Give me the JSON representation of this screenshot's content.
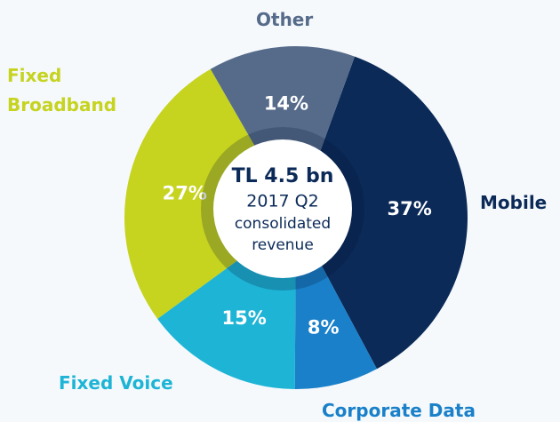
{
  "chart_data": {
    "type": "donut",
    "categories": [
      "Mobile",
      "Corporate Data",
      "Fixed Voice",
      "Fixed Broadband",
      "Other"
    ],
    "values": [
      37,
      8,
      15,
      27,
      14
    ],
    "value_labels": [
      "37%",
      "8%",
      "15%",
      "27%",
      "14%"
    ],
    "colors": [
      "#0b2a58",
      "#1a80c9",
      "#1eb4d6",
      "#c6d31f",
      "#566b8a"
    ],
    "center_text": [
      "TL 4.5 bn",
      "2017 Q2",
      "consolidated",
      "revenue"
    ]
  }
}
